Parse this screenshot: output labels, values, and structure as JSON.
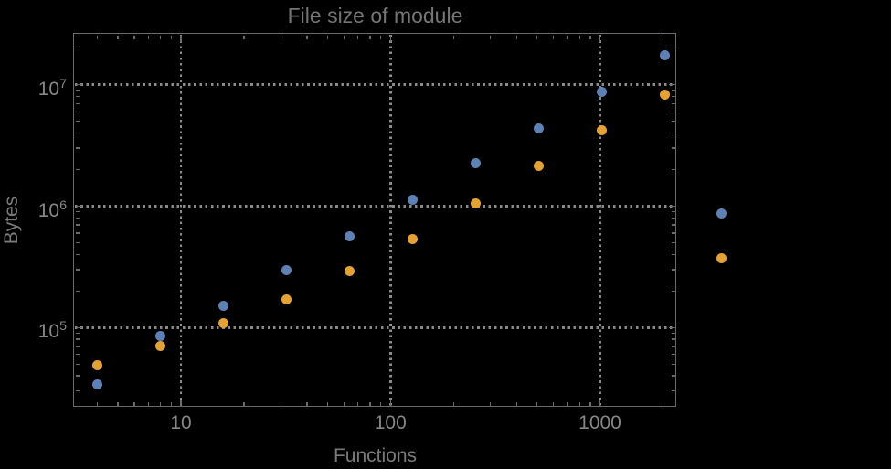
{
  "colors": {
    "background": "#000000",
    "frame": "#6a6a6a",
    "grid": "#8a8a8a",
    "tick_label": "#878787",
    "title": "#757575",
    "axis_label": "#7a7a7a",
    "series_blue": "#5e81b5",
    "series_orange": "#e3a231"
  },
  "chart_data": {
    "type": "scatter",
    "title": "File size of module",
    "xlabel": "Functions",
    "ylabel": "Bytes",
    "x_scale": "log",
    "y_scale": "log",
    "xlim": [
      3.1,
      2320
    ],
    "ylim": [
      21900,
      26300000
    ],
    "grid": "dotted lines at labeled decade ticks",
    "legend": "two unlabeled colored markers right of frame (no visible text)",
    "x_tick_labels": [
      {
        "text": "10",
        "value": 10
      },
      {
        "text": "100",
        "value": 100
      },
      {
        "text": "1000",
        "value": 1000
      }
    ],
    "y_tick_labels": [
      {
        "mantissa": "10",
        "exponent": "5",
        "value": 100000
      },
      {
        "mantissa": "10",
        "exponent": "6",
        "value": 1000000
      },
      {
        "mantissa": "10",
        "exponent": "7",
        "value": 10000000
      }
    ],
    "series": [
      {
        "name": "blue",
        "color": "#5e81b5",
        "marker": "filled-circle",
        "x": [
          4,
          8,
          16,
          32,
          64,
          128,
          256,
          512,
          1024,
          2048
        ],
        "y": [
          34000,
          85000,
          150000,
          295000,
          560000,
          1120000,
          2250000,
          4400000,
          8700000,
          17500000
        ]
      },
      {
        "name": "orange",
        "color": "#e3a231",
        "marker": "filled-circle",
        "x": [
          4,
          8,
          16,
          32,
          64,
          128,
          256,
          512,
          1024,
          2048
        ],
        "y": [
          49000,
          70000,
          108000,
          170000,
          290000,
          540000,
          1050000,
          2130000,
          4200000,
          8250000
        ]
      }
    ],
    "unlabeled_markers_outside_frame": [
      {
        "series": "blue",
        "color": "#5e81b5",
        "x": 3800,
        "y": 865000
      },
      {
        "series": "orange",
        "color": "#e3a231",
        "x": 3800,
        "y": 370000
      }
    ]
  }
}
